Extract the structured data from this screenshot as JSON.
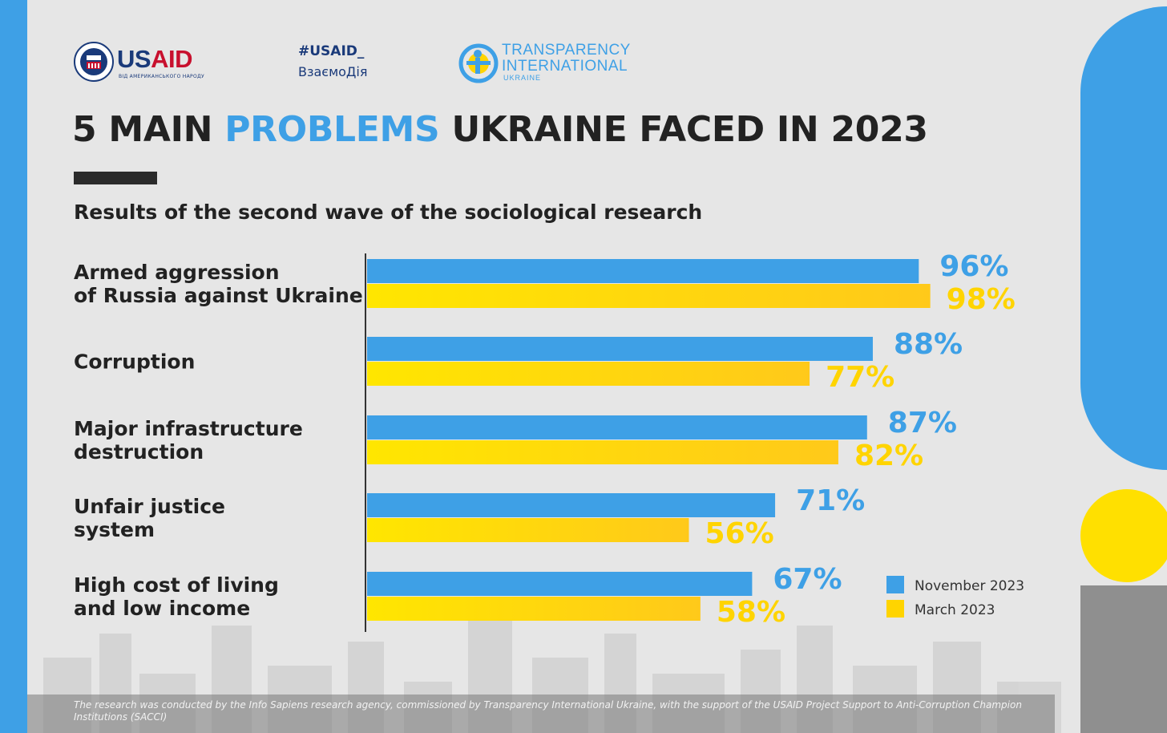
{
  "header": {
    "usaid_word_1": "US",
    "usaid_word_2": "AID",
    "usaid_tagline": "ВІД АМЕРИКАНСЬКОГО НАРОДУ",
    "hashtag_line1": "#USAID_",
    "hashtag_line2": "ВзаємоДія",
    "ti_line1": "TRANSPARENCY",
    "ti_line2": "INTERNATIONAL",
    "ti_line3": "UKRAINE"
  },
  "chart_data": {
    "type": "bar",
    "orientation": "horizontal",
    "title_parts": [
      "5 MAIN ",
      "PROBLEMS",
      " UKRAINE FACED IN 2023"
    ],
    "title": "5 MAIN PROBLEMS UKRAINE FACED IN 2023",
    "subtitle": "Results of the second wave of the sociological research",
    "categories": [
      [
        "Armed aggression",
        "of Russia against Ukraine"
      ],
      [
        "Corruption"
      ],
      [
        "Major infrastructure",
        "destruction"
      ],
      [
        "Unfair justice",
        "system"
      ],
      [
        "High cost of living",
        "and low income"
      ]
    ],
    "series": [
      {
        "name": "November 2023",
        "color": "#3ea0e6",
        "values": [
          96,
          88,
          87,
          71,
          67
        ]
      },
      {
        "name": "March 2023",
        "color": "#ffd400",
        "values": [
          98,
          77,
          82,
          56,
          58
        ]
      }
    ],
    "value_suffix": "%",
    "xlim": [
      0,
      100
    ],
    "grid": false,
    "legend": "bottom-right"
  },
  "footer": {
    "note": "The research was conducted by the Info Sapiens research agency, commissioned by Transparency International Ukraine, with the support of the USAID Project Support to Anti-Corruption Champion Institutions (SACCI)"
  }
}
